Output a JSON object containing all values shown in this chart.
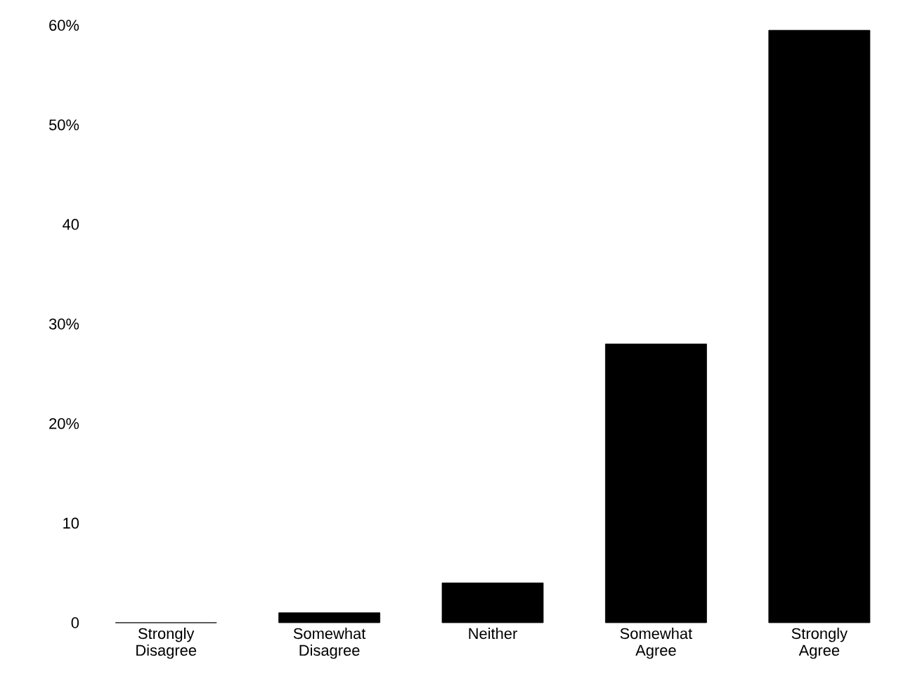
{
  "chart_data": {
    "type": "bar",
    "categories": [
      "Strongly Disagree",
      "Somewhat Disagree",
      "Neither",
      "Somewhat Agree",
      "Strongly Agree"
    ],
    "values": [
      0,
      1,
      4,
      28,
      59.5
    ],
    "color": "#000000",
    "ylim": [
      0,
      60
    ],
    "yticks": [
      {
        "value": 0,
        "label": "0"
      },
      {
        "value": 10,
        "label": "10"
      },
      {
        "value": 20,
        "label": "20%"
      },
      {
        "value": 30,
        "label": "30%"
      },
      {
        "value": 40,
        "label": "40"
      },
      {
        "value": 50,
        "label": "50%"
      },
      {
        "value": 60,
        "label": "60%"
      }
    ],
    "grid": false
  }
}
